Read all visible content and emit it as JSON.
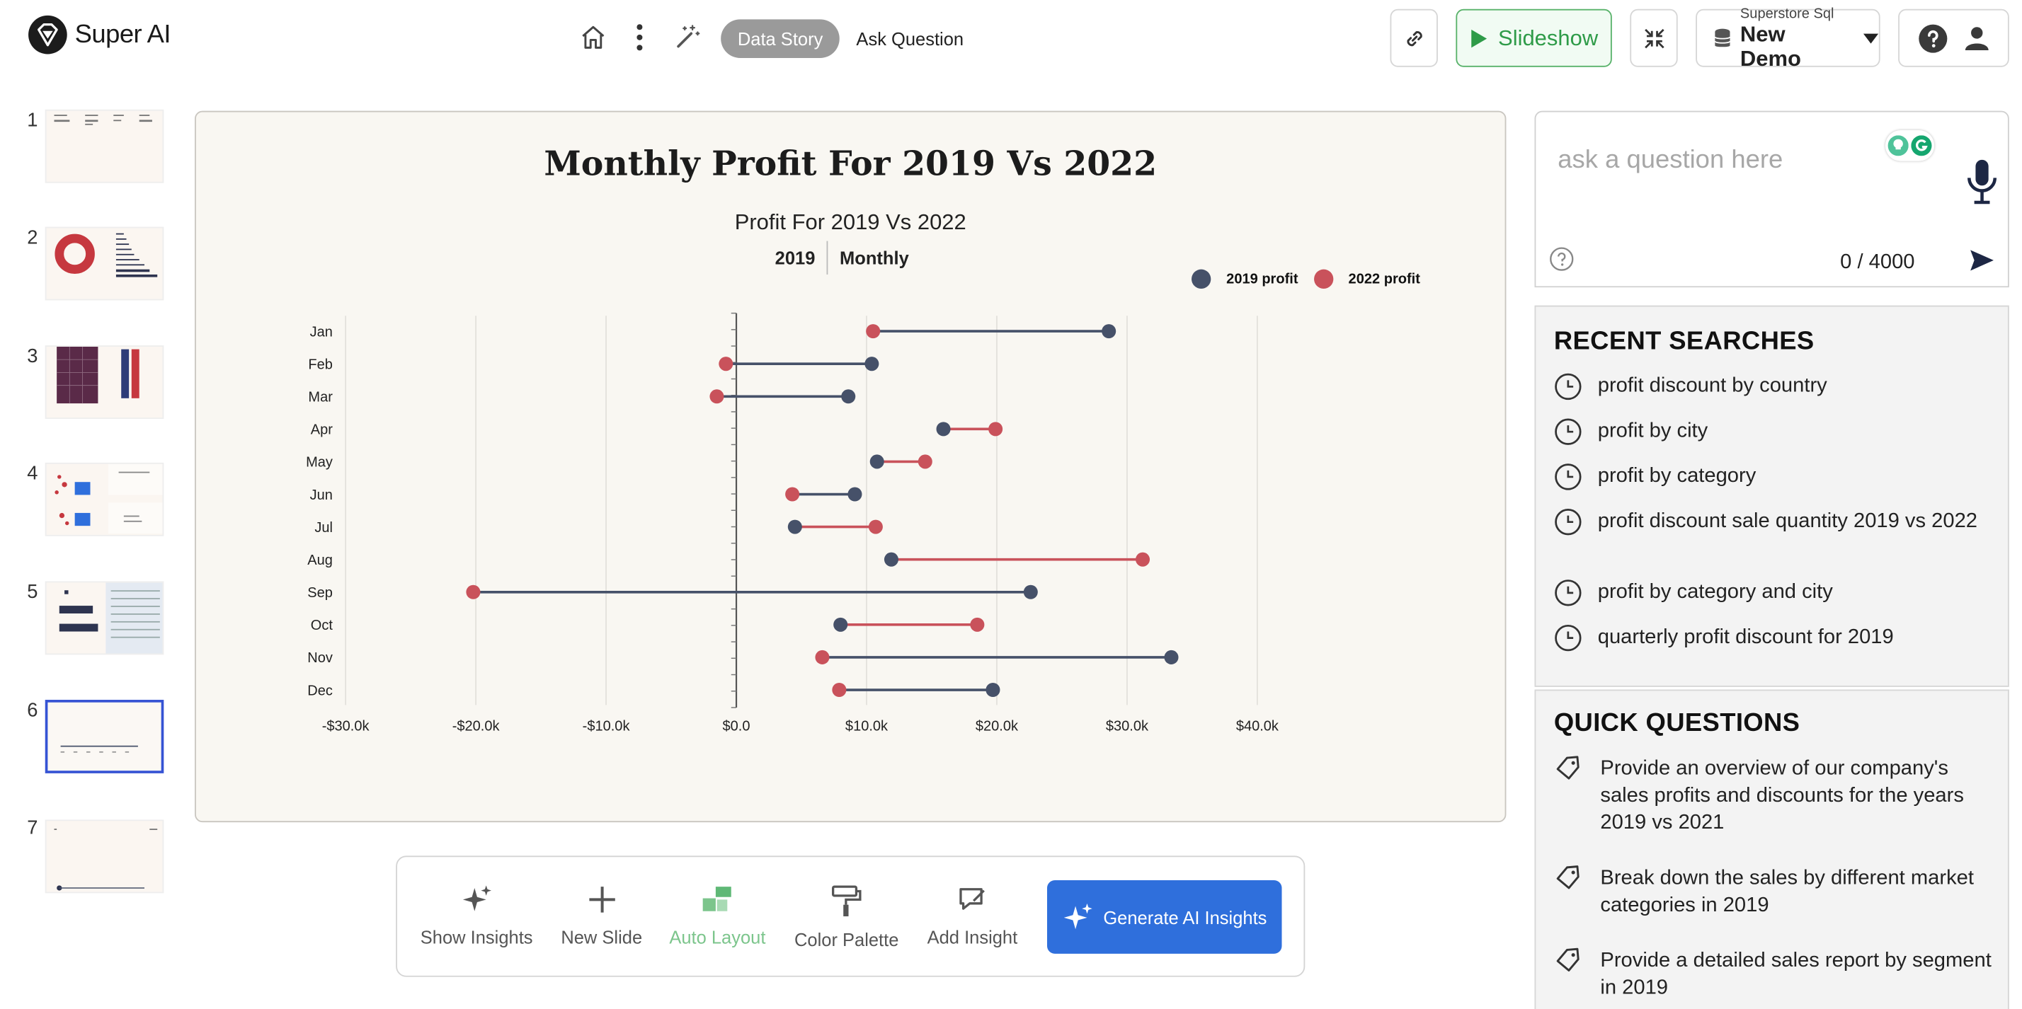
{
  "app": {
    "name": "Super AI"
  },
  "header": {
    "data_story_label": "Data Story",
    "ask_question_label": "Ask Question",
    "slideshow_label": "Slideshow",
    "datasource_label": "Superstore Sql",
    "datasource_name": "New Demo"
  },
  "thumbnails": [
    "1",
    "2",
    "3",
    "4",
    "5",
    "6",
    "7"
  ],
  "active_slide": "6",
  "slide": {
    "title": "Monthly Profit For 2019 Vs 2022",
    "chart_title": "Profit For 2019 Vs 2022",
    "filter_year": "2019",
    "filter_period": "Monthly"
  },
  "chart_data": {
    "type": "dumbbell",
    "title": "Profit For 2019 Vs 2022",
    "categories": [
      "Jan",
      "Feb",
      "Mar",
      "Apr",
      "May",
      "Jun",
      "Jul",
      "Aug",
      "Sep",
      "Oct",
      "Nov",
      "Dec"
    ],
    "series": [
      {
        "name": "2019 profit",
        "color": "#465169",
        "values": [
          28600,
          10400,
          8600,
          15900,
          10800,
          9100,
          4500,
          11900,
          22600,
          8000,
          33400,
          19700
        ]
      },
      {
        "name": "2022 profit",
        "color": "#c9525b",
        "values": [
          10500,
          -800,
          -1500,
          19900,
          14500,
          4300,
          10700,
          31200,
          -20200,
          18500,
          6600,
          7900
        ]
      }
    ],
    "xlim": [
      -30000,
      40000
    ],
    "x_ticks": [
      "-$30.0k",
      "-$20.0k",
      "-$10.0k",
      "$0.0",
      "$10.0k",
      "$20.0k",
      "$30.0k",
      "$40.0k"
    ],
    "legend_position": "top-right",
    "grid": "vertical"
  },
  "toolbar": {
    "show_insights": "Show Insights",
    "new_slide": "New Slide",
    "auto_layout": "Auto Layout",
    "color_palette": "Color Palette",
    "add_insight": "Add Insight",
    "generate": "Generate AI Insights"
  },
  "ask": {
    "placeholder": "ask a question here",
    "counter": "0 / 4000"
  },
  "recent_searches": {
    "heading": "RECENT SEARCHES",
    "items": [
      "profit discount by country",
      "profit by city",
      "profit by category",
      "profit discount sale quantity 2019 vs 2022",
      "profit by category and city",
      "quarterly profit discount for 2019"
    ]
  },
  "quick_questions": {
    "heading": "QUICK QUESTIONS",
    "items": [
      "Provide an overview of our company's sales profits and discounts for the years 2019 vs 2021",
      "Break down the sales by different market categories in 2019",
      "Provide a detailed sales report by segment in 2019"
    ]
  }
}
